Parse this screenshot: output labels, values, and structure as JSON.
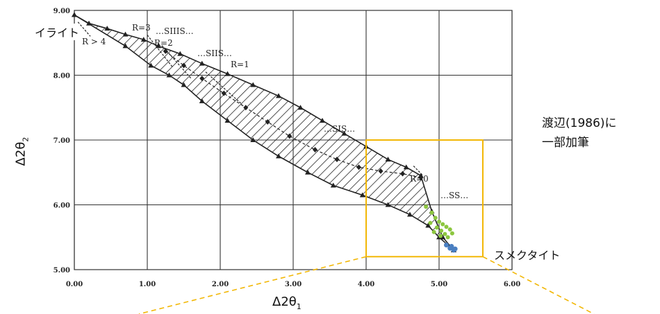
{
  "chart_data": {
    "type": "line",
    "xlabel": "Δ2θ",
    "xlabel_sub": "1",
    "ylabel": "Δ2θ",
    "ylabel_sub": "2",
    "xlim": [
      0,
      6
    ],
    "ylim": [
      5,
      9
    ],
    "x_ticks": [
      "0.00",
      "1.00",
      "2.00",
      "3.00",
      "4.00",
      "5.00",
      "6.00"
    ],
    "y_ticks": [
      "5.00",
      "6.00",
      "7.00",
      "8.00",
      "9.00"
    ],
    "grid": true,
    "series": [
      {
        "name": "",
        "marker": "triangle",
        "x": [
          0.0,
          0.2,
          0.45,
          0.7,
          0.95,
          1.15,
          1.45,
          1.75,
          2.1,
          2.45,
          2.8,
          3.1,
          3.4,
          3.7,
          4.0,
          4.3,
          4.55,
          4.75,
          4.9,
          5.05,
          5.2
        ],
        "y": [
          8.93,
          8.8,
          8.72,
          8.63,
          8.55,
          8.45,
          8.33,
          8.18,
          8.02,
          7.85,
          7.68,
          7.5,
          7.3,
          7.1,
          6.9,
          6.7,
          6.58,
          6.45,
          5.9,
          5.5,
          5.3
        ]
      },
      {
        "name": "",
        "marker": "triangle",
        "x": [
          0.0,
          0.7,
          1.05,
          1.3,
          1.5,
          1.75,
          2.1,
          2.45,
          2.8,
          3.2,
          3.55,
          3.95,
          4.3,
          4.6,
          4.85,
          5.0,
          5.2
        ],
        "y": [
          8.93,
          8.45,
          8.15,
          8.0,
          7.85,
          7.6,
          7.3,
          7.0,
          6.75,
          6.5,
          6.3,
          6.15,
          6.0,
          5.85,
          5.68,
          5.5,
          5.3
        ]
      },
      {
        "name": "",
        "marker": "diamond",
        "x": [
          1.25,
          1.5,
          1.75,
          2.05,
          2.35,
          2.65,
          2.95,
          3.3,
          3.6,
          3.9,
          4.2,
          4.5,
          4.75
        ],
        "y": [
          8.37,
          8.15,
          7.95,
          7.72,
          7.5,
          7.28,
          7.06,
          6.85,
          6.7,
          6.58,
          6.52,
          6.48,
          6.42
        ]
      }
    ],
    "green_points": [
      [
        4.82,
        5.97
      ],
      [
        4.9,
        5.88
      ],
      [
        4.95,
        5.8
      ],
      [
        5.0,
        5.74
      ],
      [
        5.05,
        5.7
      ],
      [
        4.97,
        5.65
      ],
      [
        5.03,
        5.6
      ],
      [
        5.1,
        5.66
      ],
      [
        5.15,
        5.62
      ],
      [
        5.08,
        5.55
      ],
      [
        5.12,
        5.5
      ],
      [
        5.18,
        5.56
      ],
      [
        4.88,
        5.72
      ],
      [
        4.93,
        5.58
      ],
      [
        5.02,
        5.52
      ]
    ],
    "blue_points": [
      [
        5.1,
        5.38
      ],
      [
        5.15,
        5.33
      ],
      [
        5.2,
        5.3
      ],
      [
        5.17,
        5.36
      ],
      [
        5.22,
        5.32
      ]
    ],
    "annotations": [
      "R > 4",
      "R=3",
      "…SIIIS…",
      "R=2",
      "…SIIS…",
      "R=1",
      "…SIS…",
      "R=0",
      "…SS…"
    ],
    "highlight_box": {
      "x": [
        4.0,
        5.6
      ],
      "y": [
        5.2,
        7.0
      ],
      "color": "#F2B705"
    }
  },
  "labels": {
    "illite": "イライト",
    "smectite": "スメクタイト",
    "note_line1": "渡辺(1986)に",
    "note_line2": "一部加筆"
  },
  "colors": {
    "box": "#F2B705",
    "grid": "#333333",
    "line": "#222222",
    "green": "#8CC63F",
    "blue": "#4A7FC1"
  }
}
